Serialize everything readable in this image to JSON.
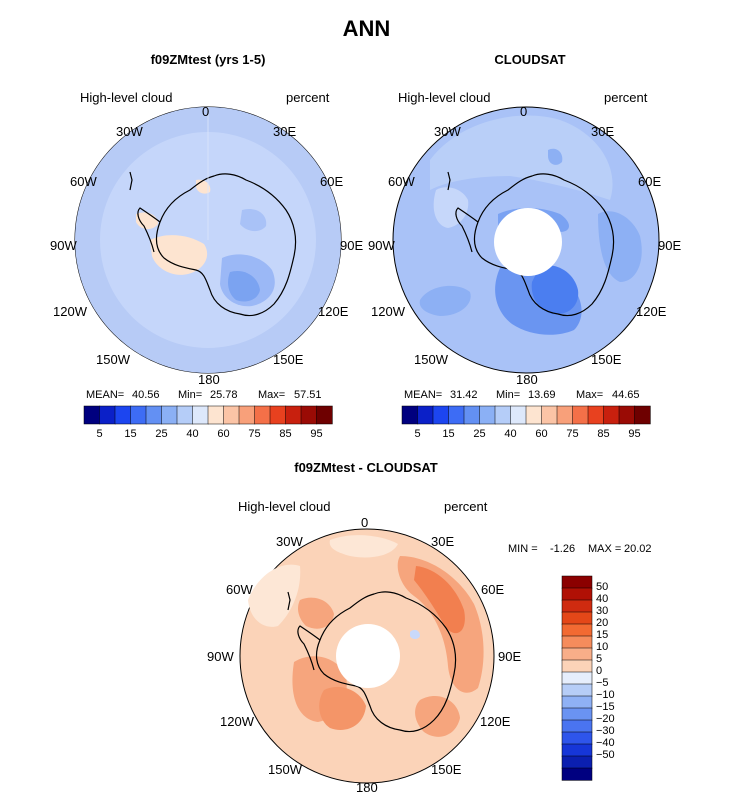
{
  "page": {
    "title": "ANN"
  },
  "colors": {
    "ocean_bg": "#b9cdf7",
    "land_bg": "#cad9fb",
    "peach": "#fde4d0",
    "diff_bg": "#fbd3b8",
    "diff_dark": "#f4a077",
    "diff_darker": "#ef7d4d",
    "blue_mid": "#7ba6f2",
    "blue_dark": "#4b7ff0",
    "blue_deep": "#2d5ff0"
  },
  "panels": [
    {
      "id": "model",
      "title": "f09ZMtest (yrs 1-5)",
      "var_label": "High-level cloud",
      "units": "percent",
      "lon_labels": {
        "n": "0",
        "n30e": "30E",
        "n60e": "60E",
        "e": "90E",
        "s120e": "120E",
        "s150e": "150E",
        "s": "180",
        "s150w": "150W",
        "s120w": "120W",
        "w": "90W",
        "n60w": "60W",
        "n30w": "30W"
      },
      "stats": {
        "mean_label": "MEAN=",
        "mean": "40.56",
        "min_label": "Min=",
        "min": "25.78",
        "max_label": "Max=",
        "max": "57.51"
      },
      "colorbar": {
        "colors": [
          "#00007f",
          "#0b20c8",
          "#1c45f0",
          "#3d6cf5",
          "#6390f3",
          "#8bb0f5",
          "#b5cdf8",
          "#dde8fb",
          "#fde4d0",
          "#fbc4a6",
          "#f8a07a",
          "#f47048",
          "#e8411f",
          "#c8200e",
          "#9a0b05",
          "#6e0000"
        ],
        "labels": [
          "5",
          "15",
          "25",
          "40",
          "60",
          "75",
          "85",
          "95"
        ]
      }
    },
    {
      "id": "obs",
      "title": "CLOUDSAT",
      "var_label": "High-level cloud",
      "units": "percent",
      "lon_labels": {
        "n": "0",
        "n30e": "30E",
        "n60e": "60E",
        "e": "90E",
        "s120e": "120E",
        "s150e": "150E",
        "s": "180",
        "s150w": "150W",
        "s120w": "120W",
        "w": "90W",
        "n60w": "60W",
        "n30w": "30W"
      },
      "stats": {
        "mean_label": "MEAN=",
        "mean": "31.42",
        "min_label": "Min=",
        "min": "13.69",
        "max_label": "Max=",
        "max": "44.65"
      },
      "colorbar": {
        "colors": [
          "#00007f",
          "#0b20c8",
          "#1c45f0",
          "#3d6cf5",
          "#6390f3",
          "#8bb0f5",
          "#b5cdf8",
          "#dde8fb",
          "#fde4d0",
          "#fbc4a6",
          "#f8a07a",
          "#f47048",
          "#e8411f",
          "#c8200e",
          "#9a0b05",
          "#6e0000"
        ],
        "labels": [
          "5",
          "15",
          "25",
          "40",
          "60",
          "75",
          "85",
          "95"
        ]
      }
    },
    {
      "id": "diff",
      "title": "f09ZMtest - CLOUDSAT",
      "var_label": "High-level cloud",
      "units": "percent",
      "lon_labels": {
        "n": "0",
        "n30e": "30E",
        "n60e": "60E",
        "e": "90E",
        "s120e": "120E",
        "s150e": "150E",
        "s": "180",
        "s150w": "150W",
        "s120w": "120W",
        "w": "90W",
        "n60w": "60W",
        "n30w": "30W"
      },
      "stats": {
        "min_label": "MIN =",
        "min": "-1.26",
        "max_label": "MAX =",
        "max": "20.02"
      },
      "colorbar": {
        "colors": [
          "#8b0000",
          "#b01005",
          "#cf2b10",
          "#e44718",
          "#f26a32",
          "#f58c5c",
          "#f8ae89",
          "#fbd3b8",
          "#e6eefc",
          "#b6cdf7",
          "#8fb1f5",
          "#6a93f2",
          "#4a74f0",
          "#2e55eb",
          "#1636d8",
          "#0b1fb0",
          "#000080"
        ],
        "labels": [
          "50",
          "40",
          "30",
          "20",
          "15",
          "10",
          "5",
          "0",
          "−5",
          "−10",
          "−15",
          "−20",
          "−30",
          "−40",
          "−50"
        ]
      }
    }
  ]
}
